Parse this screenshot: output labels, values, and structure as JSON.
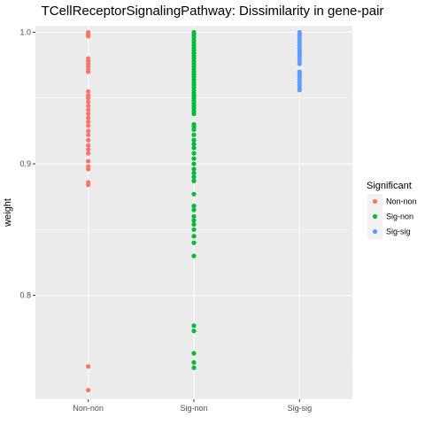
{
  "chart_data": {
    "type": "scatter",
    "title": "TCellReceptorSignalingPathway: Dissimilarity in gene-pair",
    "xlabel": "",
    "ylabel": "weight",
    "categories": [
      "Non-non",
      "Sig-non",
      "Sig-sig"
    ],
    "yticks": [
      0.8,
      0.9,
      1.0
    ],
    "ytick_labels": [
      "0.8",
      "0.9",
      "1.0"
    ],
    "ylim": [
      0.721,
      1.005
    ],
    "grid": true,
    "legend": {
      "title": "Significant",
      "position": "right",
      "entries": [
        "Non-non",
        "Sig-non",
        "Sig-sig"
      ]
    },
    "series": [
      {
        "name": "Non-non",
        "color": "#f8766d",
        "category": "Non-non",
        "values": [
          1.0,
          0.999,
          0.998,
          0.997,
          0.98,
          0.978,
          0.976,
          0.974,
          0.972,
          0.97,
          0.955,
          0.952,
          0.95,
          0.947,
          0.944,
          0.941,
          0.938,
          0.935,
          0.932,
          0.929,
          0.925,
          0.922,
          0.918,
          0.914,
          0.911,
          0.908,
          0.902,
          0.898,
          0.896,
          0.886,
          0.884,
          0.746,
          0.728
        ]
      },
      {
        "name": "Sig-non",
        "color": "#00ba38",
        "category": "Sig-non",
        "values": [
          1.0,
          0.998,
          0.996,
          0.994,
          0.992,
          0.99,
          0.988,
          0.986,
          0.984,
          0.982,
          0.98,
          0.978,
          0.976,
          0.974,
          0.972,
          0.97,
          0.968,
          0.966,
          0.964,
          0.962,
          0.96,
          0.958,
          0.956,
          0.954,
          0.952,
          0.95,
          0.948,
          0.946,
          0.944,
          0.942,
          0.94,
          0.938,
          0.93,
          0.928,
          0.926,
          0.922,
          0.918,
          0.915,
          0.912,
          0.908,
          0.904,
          0.9,
          0.896,
          0.893,
          0.89,
          0.887,
          0.877,
          0.868,
          0.865,
          0.86,
          0.857,
          0.854,
          0.85,
          0.845,
          0.84,
          0.83,
          0.777,
          0.773,
          0.756,
          0.749,
          0.745
        ]
      },
      {
        "name": "Sig-sig",
        "color": "#619cff",
        "category": "Sig-sig",
        "values": [
          1.0,
          0.998,
          0.996,
          0.994,
          0.992,
          0.99,
          0.988,
          0.986,
          0.984,
          0.982,
          0.98,
          0.978,
          0.976,
          0.97,
          0.968,
          0.966,
          0.964,
          0.962,
          0.96,
          0.958,
          0.956
        ]
      }
    ]
  }
}
